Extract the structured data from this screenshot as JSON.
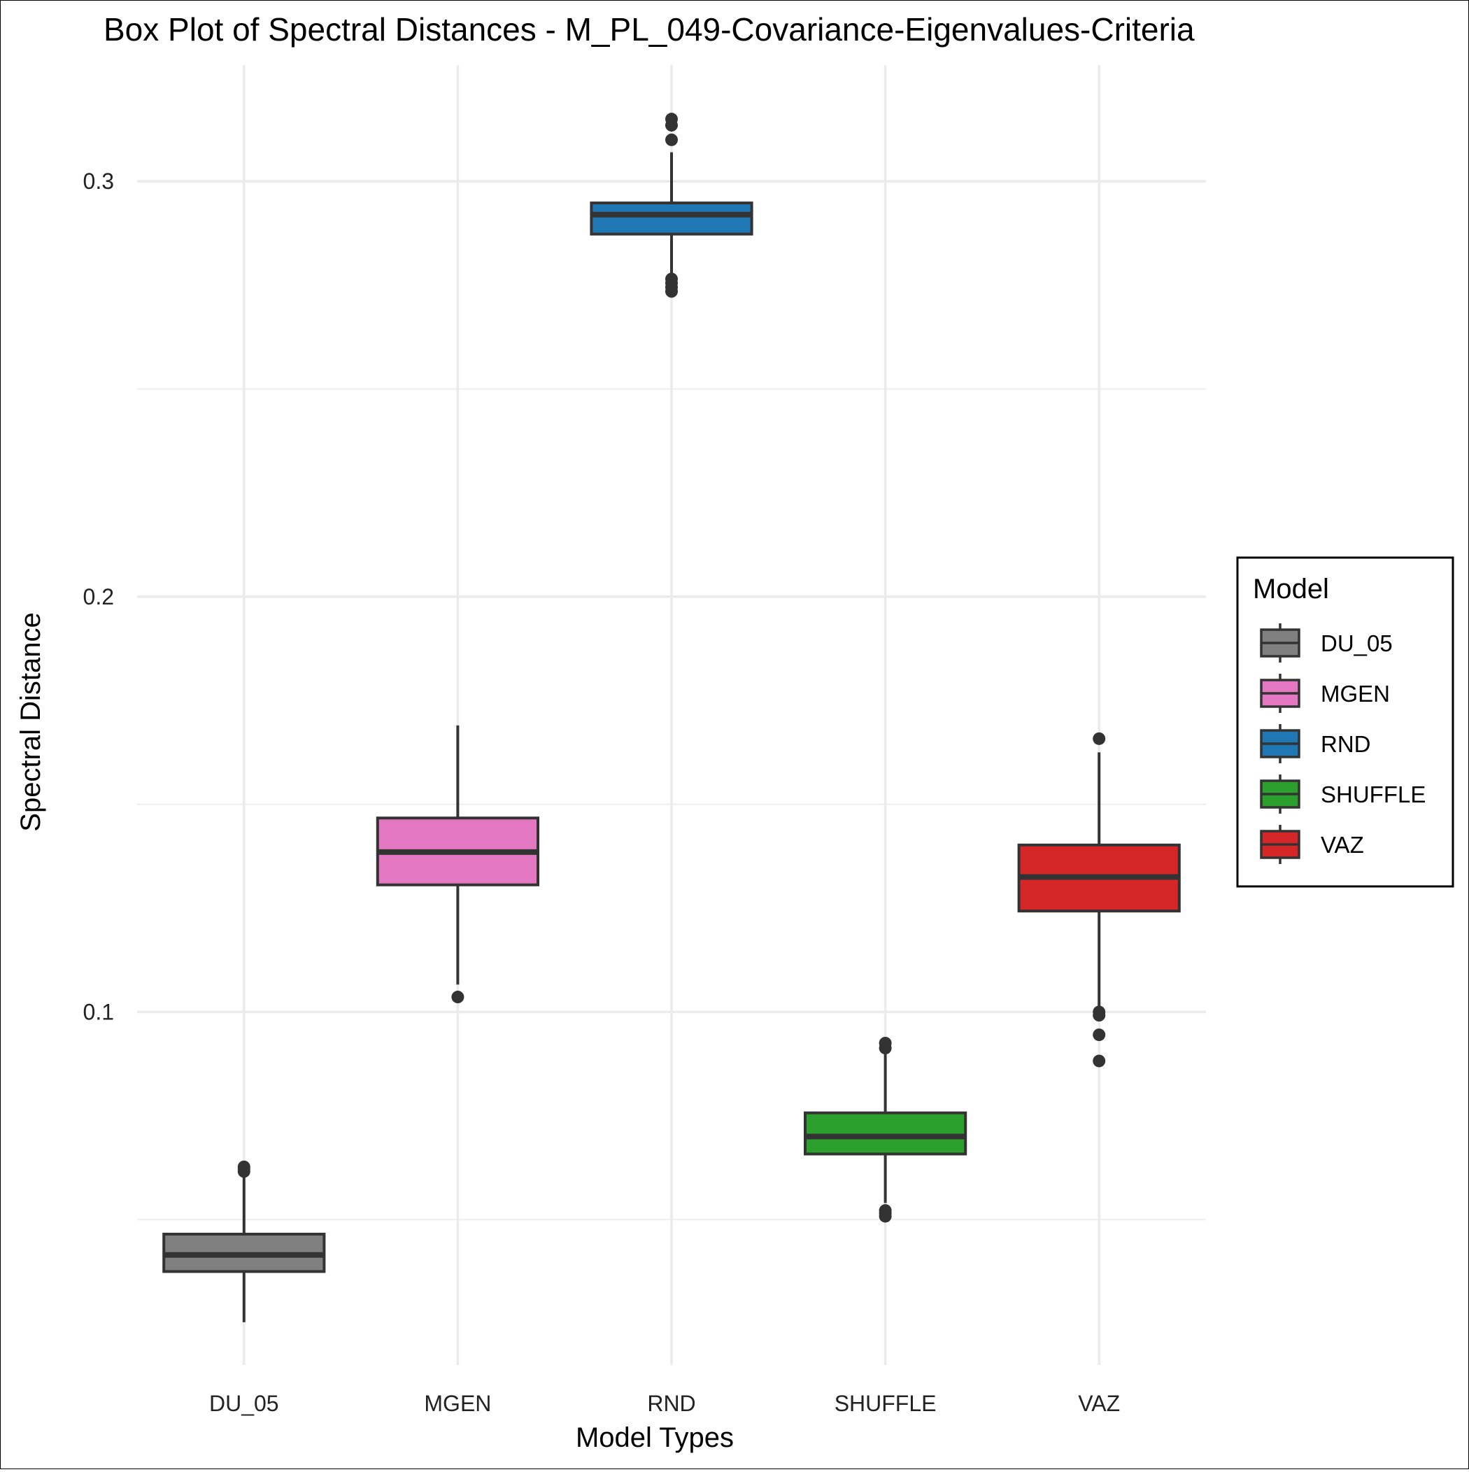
{
  "chart_data": {
    "type": "box",
    "title": "Box Plot of Spectral Distances -  M_PL_049-Covariance-Eigenvalues-Criteria",
    "xlabel": "Model Types",
    "ylabel": "Spectral Distance",
    "ylim": [
      0.015,
      0.328
    ],
    "yticks": [
      0.1,
      0.2,
      0.3
    ],
    "ytick_labels": [
      "0.1",
      "0.2",
      "0.3"
    ],
    "grid": true,
    "legend": {
      "title": "Model",
      "position": "right"
    },
    "categories": [
      "DU_05",
      "MGEN",
      "RND",
      "SHUFFLE",
      "VAZ"
    ],
    "series": [
      {
        "name": "DU_05",
        "color": "#808080",
        "whisker_low": 0.0253,
        "q1": 0.0375,
        "median": 0.0415,
        "q3": 0.0465,
        "whisker_high": 0.0607,
        "outliers": [
          0.0616,
          0.0622,
          0.0627
        ]
      },
      {
        "name": "MGEN",
        "color": "#e377c2",
        "whisker_low": 0.1066,
        "q1": 0.1306,
        "median": 0.1385,
        "q3": 0.1467,
        "whisker_high": 0.169,
        "outliers": [
          0.1036
        ]
      },
      {
        "name": "RND",
        "color": "#1f77b4",
        "whisker_low": 0.2765,
        "q1": 0.2873,
        "median": 0.292,
        "q3": 0.2948,
        "whisker_high": 0.307,
        "outliers": [
          0.2735,
          0.2745,
          0.2755,
          0.2765,
          0.31,
          0.3135,
          0.315
        ]
      },
      {
        "name": "SHUFFLE",
        "color": "#2ca02c",
        "whisker_low": 0.054,
        "q1": 0.0658,
        "median": 0.07,
        "q3": 0.0757,
        "whisker_high": 0.0905,
        "outliers": [
          0.0508,
          0.0515,
          0.0522,
          0.0913,
          0.0925
        ]
      },
      {
        "name": "VAZ",
        "color": "#d62728",
        "whisker_low": 0.101,
        "q1": 0.1243,
        "median": 0.1325,
        "q3": 0.1402,
        "whisker_high": 0.1625,
        "outliers": [
          0.0882,
          0.0945,
          0.0992,
          0.1,
          0.1658
        ]
      }
    ]
  }
}
